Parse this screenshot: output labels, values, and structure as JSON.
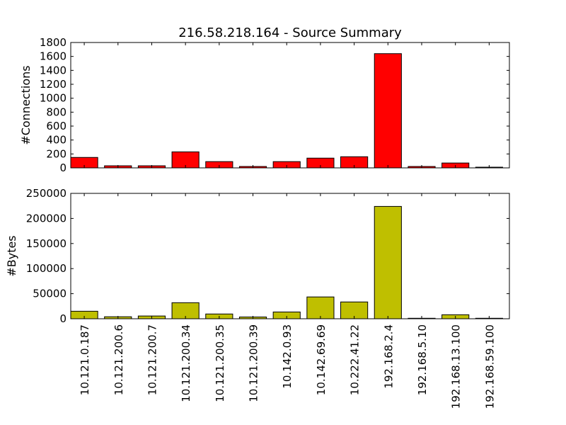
{
  "chart_data": [
    {
      "type": "bar",
      "title": "216.58.218.164 - Source Summary",
      "ylabel": "#Connections",
      "xlabel": "",
      "ylim": [
        0,
        1800
      ],
      "yticks": [
        0,
        200,
        400,
        600,
        800,
        1000,
        1200,
        1400,
        1600,
        1800
      ],
      "grid": false,
      "color": "#ff0000",
      "categories": [
        "10.121.0.187",
        "10.121.200.6",
        "10.121.200.7",
        "10.121.200.34",
        "10.121.200.35",
        "10.121.200.39",
        "10.142.0.93",
        "10.142.69.69",
        "10.222.41.22",
        "192.168.2.4",
        "192.168.5.10",
        "192.168.13.100",
        "192.168.59.100"
      ],
      "values": [
        150,
        30,
        30,
        230,
        90,
        20,
        90,
        140,
        160,
        1640,
        20,
        70,
        10
      ]
    },
    {
      "type": "bar",
      "title": "",
      "ylabel": "#Bytes",
      "xlabel": "",
      "ylim": [
        0,
        250000
      ],
      "yticks": [
        0,
        50000,
        100000,
        150000,
        200000,
        250000
      ],
      "grid": false,
      "color": "#bfbf00",
      "categories": [
        "10.121.0.187",
        "10.121.200.6",
        "10.121.200.7",
        "10.121.200.34",
        "10.121.200.35",
        "10.121.200.39",
        "10.142.0.93",
        "10.142.69.69",
        "10.222.41.22",
        "192.168.2.4",
        "192.168.5.10",
        "192.168.13.100",
        "192.168.59.100"
      ],
      "values": [
        15000,
        4000,
        5500,
        32000,
        9500,
        3500,
        13500,
        43500,
        33500,
        224000,
        1000,
        8000,
        1000
      ]
    }
  ]
}
